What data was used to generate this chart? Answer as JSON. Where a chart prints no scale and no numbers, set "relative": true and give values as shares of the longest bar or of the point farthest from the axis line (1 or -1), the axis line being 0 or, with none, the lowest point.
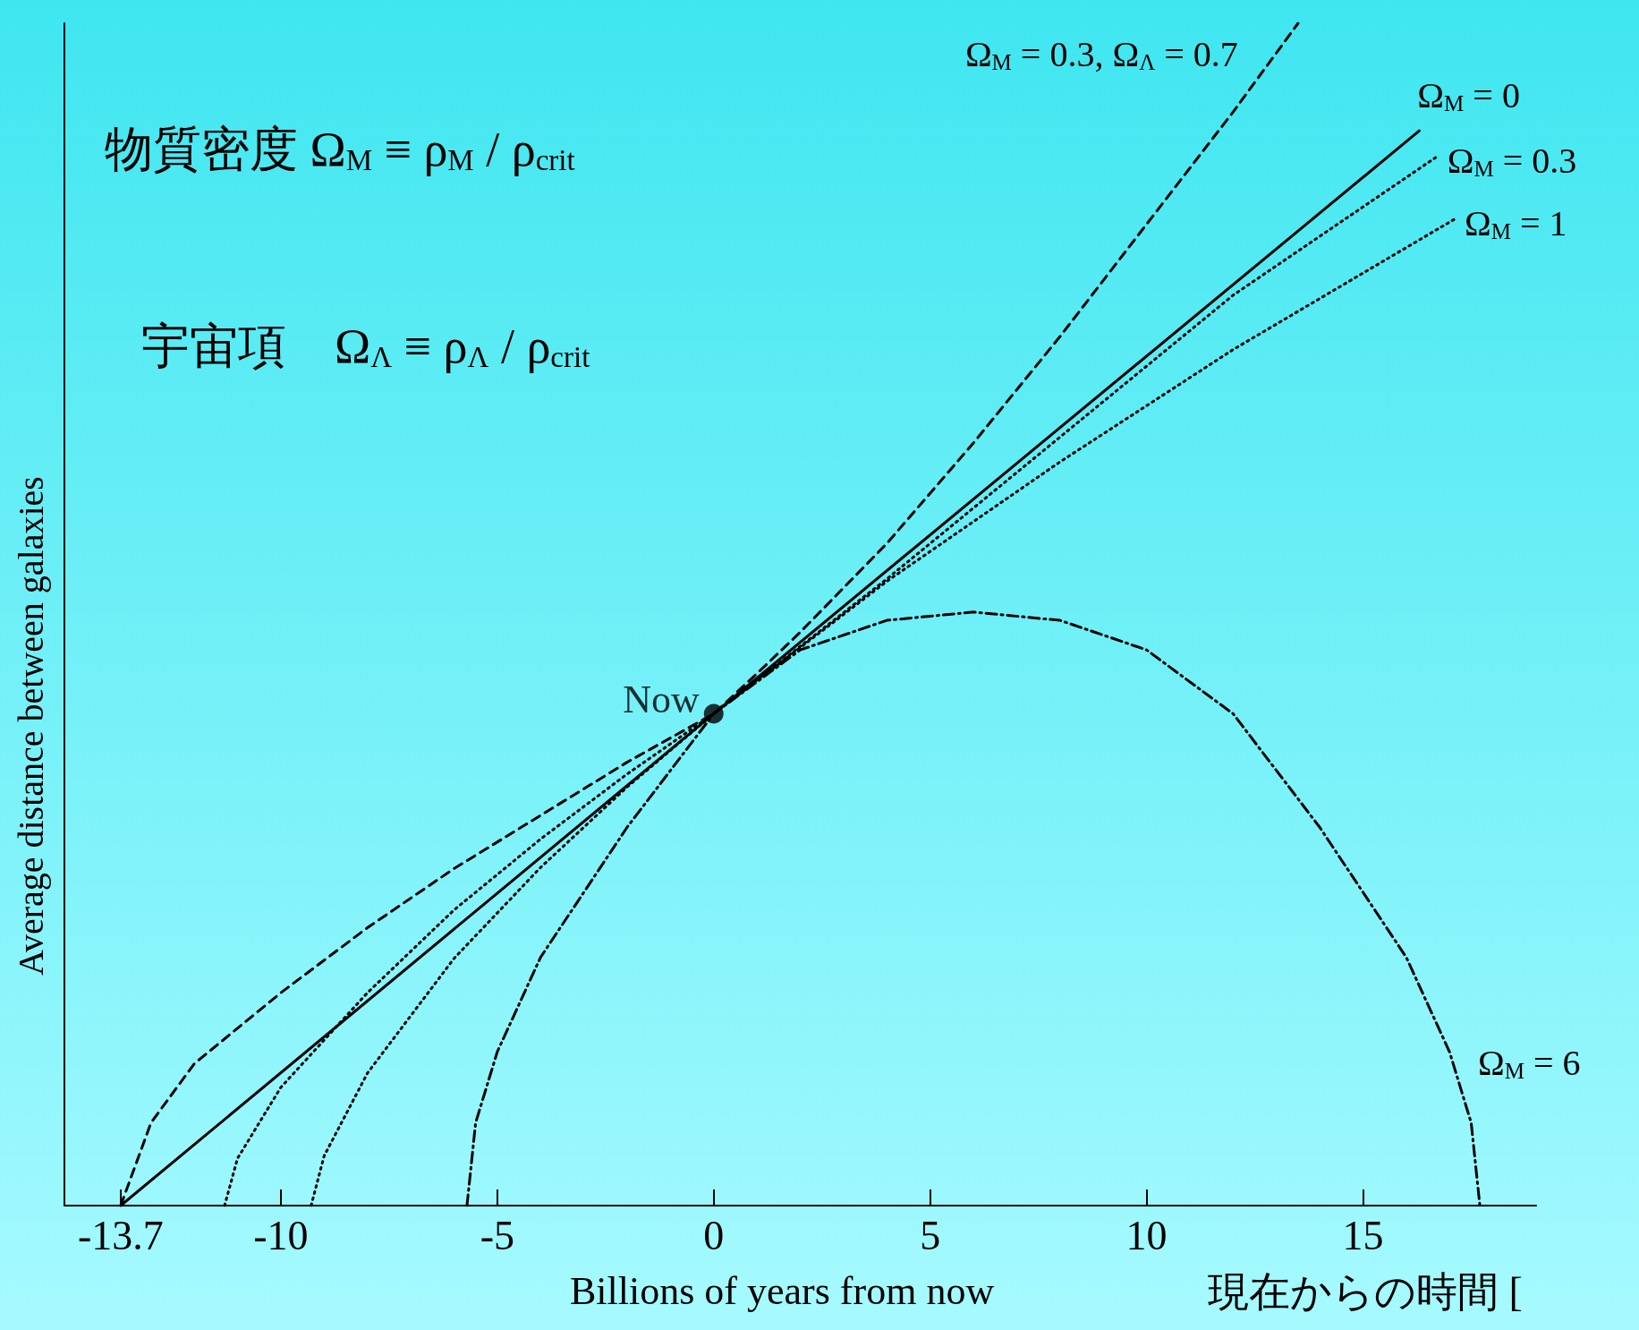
{
  "chart_data": {
    "type": "line",
    "relative": true,
    "xlabel": "Billions of years from now",
    "ylabel": "Average distance between galaxies",
    "xlim": [
      -15,
      19
    ],
    "xticks": [
      -13.7,
      -10,
      -5,
      0,
      5,
      10,
      15
    ],
    "grid": false,
    "legend": false,
    "marker": "none",
    "annotations": [
      {
        "text": "Now",
        "x": 0,
        "y": 0.416
      },
      "物質密度 Ω$_{M}$ ≡ ρ$_{M}$ / ρ$_{crit}$",
      "宇宙項　Ω$_{Λ}$ ≡ ρ$_{Λ}$ / ρ$_{crit}$",
      "現在からの時間 ["
    ],
    "series": [
      {
        "name": "Ω$_{M}$ = 0.3, Ω$_{Λ}$ = 0.7",
        "color": "#000000",
        "line_style": "dashed",
        "x": [
          -13.7,
          -13,
          -12,
          -10,
          -8,
          -6,
          -4,
          -2,
          0,
          1,
          2,
          4,
          6,
          8,
          10,
          12,
          13.5
        ],
        "values": [
          0,
          0.07,
          0.12,
          0.18,
          0.235,
          0.285,
          0.33,
          0.375,
          0.416,
          0.45,
          0.485,
          0.56,
          0.645,
          0.735,
          0.83,
          0.925,
          1.0
        ]
      },
      {
        "name": "Ω$_{M}$ = 0",
        "color": "#000000",
        "line_style": "solid",
        "x": [
          -13.7,
          0,
          16.3
        ],
        "values": [
          0,
          0.416,
          0.909
        ]
      },
      {
        "name": "Ω$_{M}$ = 0.3",
        "color": "#000000",
        "line_style": "dotted",
        "x": [
          -11.3,
          -11,
          -10,
          -8,
          -6,
          -4,
          -2,
          0,
          4,
          8,
          12,
          16.7
        ],
        "values": [
          0,
          0.04,
          0.1,
          0.18,
          0.25,
          0.31,
          0.365,
          0.416,
          0.53,
          0.65,
          0.77,
          0.887
        ]
      },
      {
        "name": "Ω$_{M}$ = 1",
        "color": "#000000",
        "line_style": "dotted",
        "x": [
          -9.3,
          -9,
          -8,
          -6,
          -4,
          -2,
          0,
          4,
          8,
          12,
          17.1
        ],
        "values": [
          0,
          0.042,
          0.112,
          0.209,
          0.286,
          0.354,
          0.416,
          0.528,
          0.629,
          0.724,
          0.834
        ]
      },
      {
        "name": "Ω$_{M}$ = 6",
        "color": "#000000",
        "line_style": "dashdot",
        "x": [
          -5.7,
          -5.5,
          -5,
          -4,
          -2,
          0,
          2,
          4,
          6,
          8,
          10,
          12,
          14,
          16,
          17,
          17.5,
          17.7
        ],
        "values": [
          0,
          0.07,
          0.13,
          0.21,
          0.32,
          0.416,
          0.47,
          0.495,
          0.502,
          0.495,
          0.47,
          0.416,
          0.32,
          0.21,
          0.13,
          0.07,
          0
        ]
      }
    ]
  }
}
